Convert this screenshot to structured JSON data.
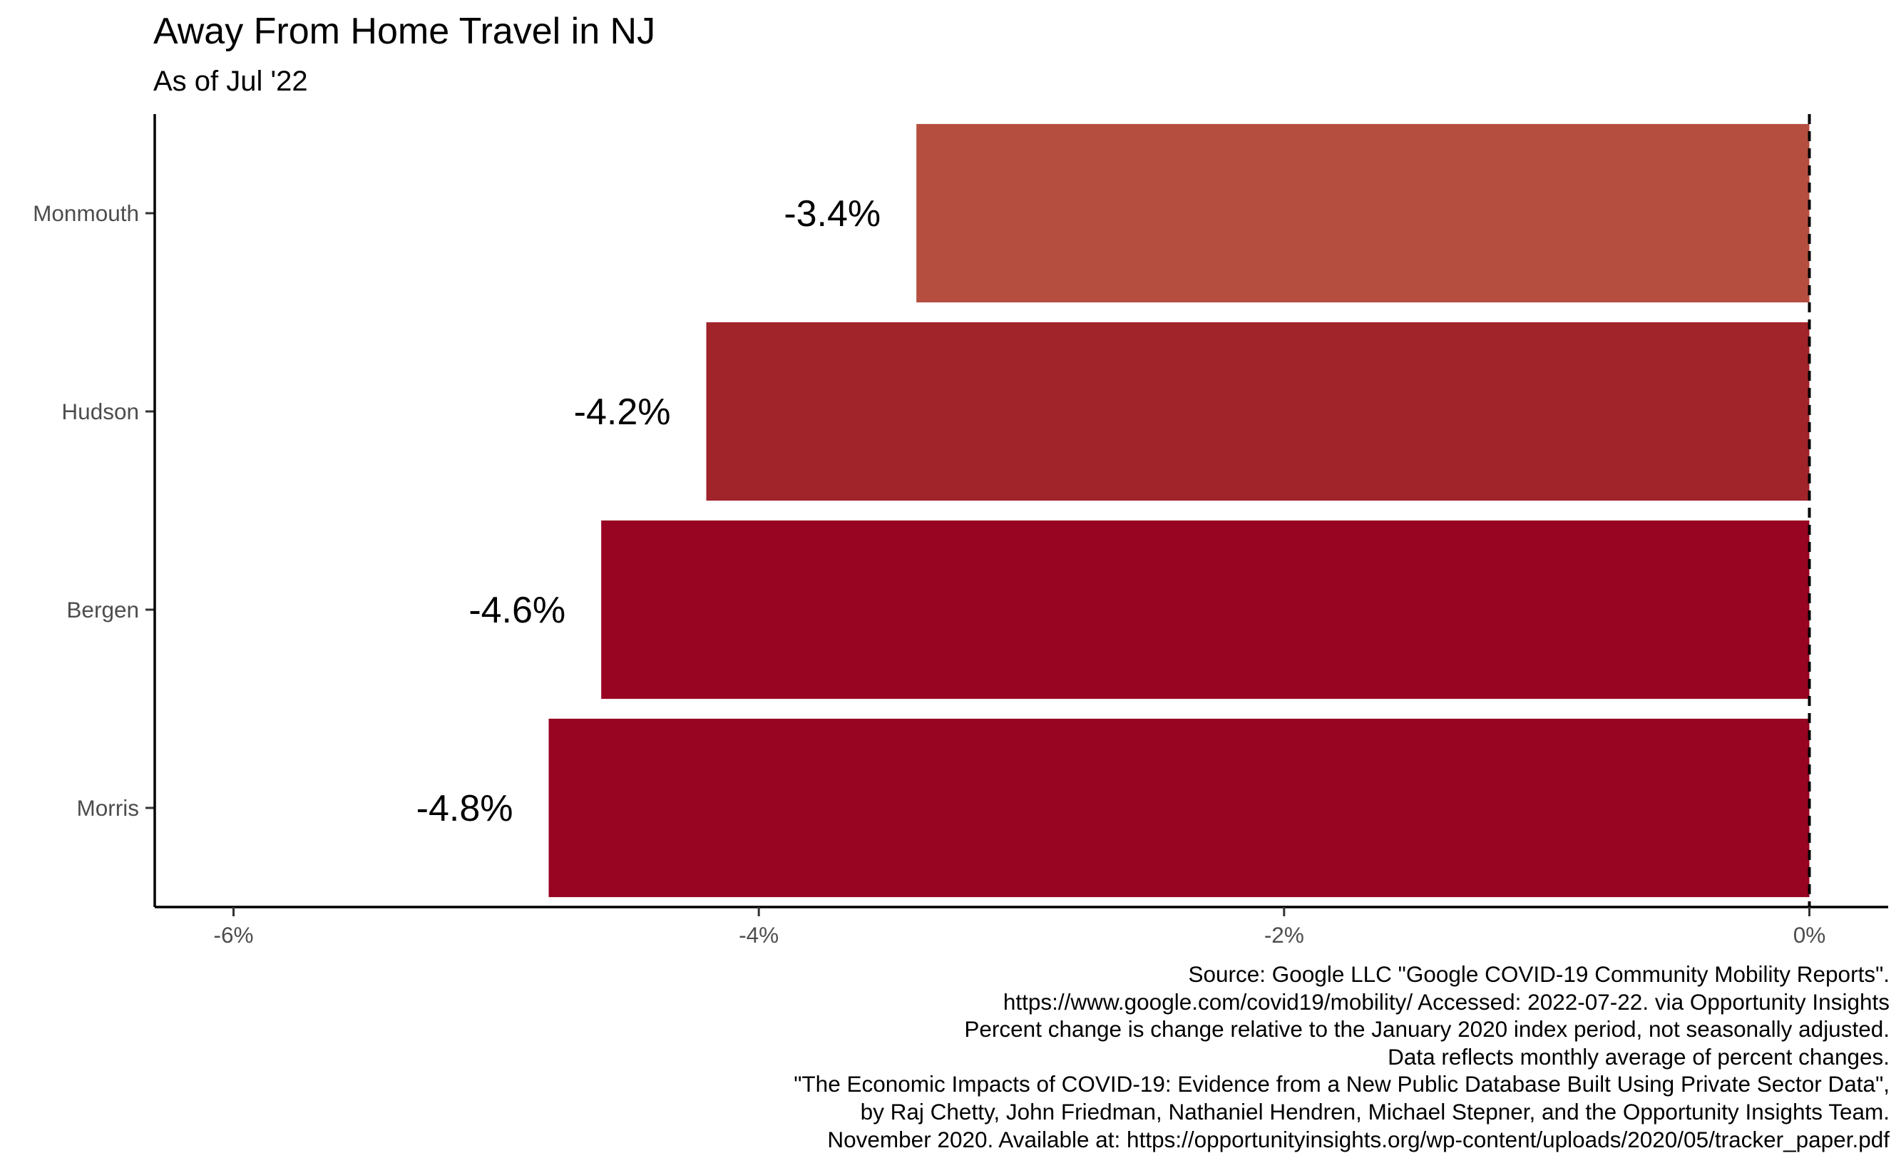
{
  "header": {
    "title": "Away From Home Travel in NJ",
    "subtitle": "As of Jul '22"
  },
  "chart_data": {
    "type": "bar",
    "orientation": "horizontal",
    "categories": [
      "Monmouth",
      "Hudson",
      "Bergen",
      "Morris"
    ],
    "values": [
      -3.4,
      -4.2,
      -4.6,
      -4.8
    ],
    "value_labels": [
      "-3.4%",
      "-4.2%",
      "-4.6%",
      "-4.8%"
    ],
    "bar_colors": [
      "#B54E3F",
      "#A1242B",
      "#970522",
      "#970522"
    ],
    "xlim": [
      -6.3,
      0.3
    ],
    "x_ticks": [
      -6,
      -4,
      -2,
      0
    ],
    "x_tick_labels": [
      "-6%",
      "-4%",
      "-2%",
      "0%"
    ],
    "reference_line": 0,
    "grid": false,
    "legend": "none",
    "title": "Away From Home Travel in NJ",
    "subtitle": "As of Jul '22"
  },
  "caption": [
    "Source: Google LLC \"Google COVID-19 Community Mobility Reports\".",
    "https://www.google.com/covid19/mobility/ Accessed: 2022-07-22. via Opportunity Insights",
    "Percent change is change relative to the January 2020 index period, not seasonally adjusted.",
    "Data reflects monthly average of percent changes.",
    "\"The Economic Impacts of COVID-19: Evidence from a New Public Database Built Using Private Sector Data\",",
    "by Raj Chetty, John Friedman, Nathaniel Hendren, Michael Stepner, and the Opportunity Insights Team.",
    "November 2020. Available at: https://opportunityinsights.org/wp-content/uploads/2020/05/tracker_paper.pdf"
  ]
}
